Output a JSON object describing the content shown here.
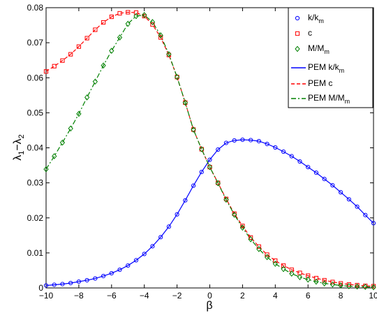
{
  "chart_data": {
    "type": "line",
    "xlabel": "β",
    "ylabel": "λ1−λ2",
    "xlim": [
      -10,
      10
    ],
    "ylim": [
      0,
      0.08
    ],
    "xticks": [
      "-10",
      "-8",
      "-6",
      "-4",
      "-2",
      "0",
      "2",
      "4",
      "6",
      "8",
      "10"
    ],
    "yticks": [
      "0",
      "0.01",
      "0.02",
      "0.03",
      "0.04",
      "0.05",
      "0.06",
      "0.07",
      "0.08"
    ],
    "grid": false,
    "legend_placement": "top-right",
    "series": [
      {
        "name": "k/k_m",
        "kind": "markers",
        "marker": "circle",
        "color": "#0000ff",
        "x": [
          -10,
          -9.5,
          -9,
          -8.5,
          -8,
          -7.5,
          -7,
          -6.5,
          -6,
          -5.5,
          -5,
          -4.5,
          -4,
          -3.5,
          -3,
          -2.5,
          -2,
          -1.5,
          -1,
          -0.5,
          0,
          0.5,
          1,
          1.5,
          2,
          2.5,
          3,
          3.5,
          4,
          4.5,
          5,
          5.5,
          6,
          6.5,
          7,
          7.5,
          8,
          8.5,
          9,
          9.5,
          10
        ],
        "y": [
          0.0007,
          0.0009,
          0.0011,
          0.0014,
          0.0018,
          0.0022,
          0.0027,
          0.0034,
          0.0042,
          0.0052,
          0.0064,
          0.0079,
          0.0097,
          0.0119,
          0.0145,
          0.0175,
          0.021,
          0.025,
          0.0292,
          0.0331,
          0.0366,
          0.0395,
          0.0414,
          0.0421,
          0.0423,
          0.0422,
          0.0419,
          0.0411,
          0.0401,
          0.0389,
          0.0376,
          0.0361,
          0.0345,
          0.0329,
          0.0311,
          0.0293,
          0.0273,
          0.0253,
          0.0232,
          0.0208,
          0.0185
        ]
      },
      {
        "name": "c",
        "kind": "markers",
        "marker": "square",
        "color": "#ff0000",
        "x": [
          -10,
          -9.5,
          -9,
          -8.5,
          -8,
          -7.5,
          -7,
          -6.5,
          -6,
          -5.5,
          -5,
          -4.5,
          -4,
          -3.5,
          -3,
          -2.5,
          -2,
          -1.5,
          -1,
          -0.5,
          0,
          0.5,
          1,
          1.5,
          2,
          2.5,
          3,
          3.5,
          4,
          4.5,
          5,
          5.5,
          6,
          6.5,
          7,
          7.5,
          8,
          8.5,
          9,
          9.5,
          10
        ],
        "y": [
          0.0618,
          0.0633,
          0.0649,
          0.0667,
          0.0689,
          0.0713,
          0.0737,
          0.0758,
          0.0774,
          0.0784,
          0.0787,
          0.0786,
          0.0776,
          0.0752,
          0.0715,
          0.0665,
          0.0602,
          0.0529,
          0.0452,
          0.0396,
          0.0345,
          0.03,
          0.0254,
          0.0212,
          0.0177,
          0.0144,
          0.0118,
          0.0095,
          0.0078,
          0.0064,
          0.0052,
          0.0043,
          0.0035,
          0.0028,
          0.0022,
          0.0017,
          0.0013,
          0.001,
          0.0008,
          0.0006,
          0.0005
        ]
      },
      {
        "name": "M/M_m",
        "kind": "markers",
        "marker": "diamond",
        "color": "#008000",
        "x": [
          -10,
          -9.5,
          -9,
          -8.5,
          -8,
          -7.5,
          -7,
          -6.5,
          -6,
          -5.5,
          -5,
          -4.5,
          -4,
          -3.5,
          -3,
          -2.5,
          -2,
          -1.5,
          -1,
          -0.5,
          0,
          0.5,
          1,
          1.5,
          2,
          2.5,
          3,
          3.5,
          4,
          4.5,
          5,
          5.5,
          6,
          6.5,
          7,
          7.5,
          8,
          8.5,
          9,
          9.5,
          10
        ],
        "y": [
          0.0339,
          0.0376,
          0.0415,
          0.0455,
          0.0497,
          0.0544,
          0.0589,
          0.0635,
          0.0677,
          0.0715,
          0.0754,
          0.0776,
          0.0779,
          0.0759,
          0.0721,
          0.0667,
          0.0602,
          0.0529,
          0.0452,
          0.0396,
          0.0345,
          0.0299,
          0.0252,
          0.0209,
          0.0172,
          0.0139,
          0.0111,
          0.0088,
          0.0069,
          0.0054,
          0.0041,
          0.0031,
          0.0024,
          0.0018,
          0.0013,
          0.001,
          0.0007,
          0.0005,
          0.0004,
          0.0003,
          0.0002
        ]
      },
      {
        "name": "PEM k/k_m",
        "kind": "line",
        "dash": "solid",
        "color": "#0000ff",
        "x": [
          -10,
          -9.5,
          -9,
          -8.5,
          -8,
          -7.5,
          -7,
          -6.5,
          -6,
          -5.5,
          -5,
          -4.5,
          -4,
          -3.5,
          -3,
          -2.5,
          -2,
          -1.5,
          -1,
          -0.5,
          0,
          0.5,
          1,
          1.5,
          2,
          2.5,
          3,
          3.5,
          4,
          4.5,
          5,
          5.5,
          6,
          6.5,
          7,
          7.5,
          8,
          8.5,
          9,
          9.5,
          10
        ],
        "y": [
          0.0007,
          0.0009,
          0.0011,
          0.0014,
          0.0018,
          0.0022,
          0.0027,
          0.0034,
          0.0042,
          0.0052,
          0.0064,
          0.0079,
          0.0097,
          0.0119,
          0.0145,
          0.0175,
          0.021,
          0.025,
          0.0292,
          0.0331,
          0.0366,
          0.0395,
          0.0414,
          0.0421,
          0.0423,
          0.0422,
          0.0419,
          0.0411,
          0.0401,
          0.0389,
          0.0376,
          0.0361,
          0.0345,
          0.0329,
          0.0311,
          0.0293,
          0.0273,
          0.0253,
          0.0232,
          0.0208,
          0.0185
        ]
      },
      {
        "name": "PEM c",
        "kind": "line",
        "dash": "dashed",
        "color": "#ff0000",
        "x": [
          -10,
          -9.5,
          -9,
          -8.5,
          -8,
          -7.5,
          -7,
          -6.5,
          -6,
          -5.5,
          -5,
          -4.5,
          -4,
          -3.5,
          -3,
          -2.5,
          -2,
          -1.5,
          -1,
          -0.5,
          0,
          0.5,
          1,
          1.5,
          2,
          2.5,
          3,
          3.5,
          4,
          4.5,
          5,
          5.5,
          6,
          6.5,
          7,
          7.5,
          8,
          8.5,
          9,
          9.5,
          10
        ],
        "y": [
          0.0618,
          0.0633,
          0.0649,
          0.0667,
          0.0689,
          0.0713,
          0.0737,
          0.0758,
          0.0774,
          0.0784,
          0.0787,
          0.0786,
          0.0776,
          0.0752,
          0.0715,
          0.0665,
          0.0602,
          0.0529,
          0.0452,
          0.0396,
          0.0345,
          0.03,
          0.0254,
          0.0212,
          0.0177,
          0.0144,
          0.0118,
          0.0095,
          0.0078,
          0.0064,
          0.0052,
          0.0043,
          0.0035,
          0.0028,
          0.0022,
          0.0017,
          0.0013,
          0.001,
          0.0008,
          0.0006,
          0.0005
        ]
      },
      {
        "name": "PEM M/M_m",
        "kind": "line",
        "dash": "dashdot",
        "color": "#008000",
        "x": [
          -10,
          -9.5,
          -9,
          -8.5,
          -8,
          -7.5,
          -7,
          -6.5,
          -6,
          -5.5,
          -5,
          -4.5,
          -4,
          -3.5,
          -3,
          -2.5,
          -2,
          -1.5,
          -1,
          -0.5,
          0,
          0.5,
          1,
          1.5,
          2,
          2.5,
          3,
          3.5,
          4,
          4.5,
          5,
          5.5,
          6,
          6.5,
          7,
          7.5,
          8,
          8.5,
          9,
          9.5,
          10
        ],
        "y": [
          0.0339,
          0.0376,
          0.0415,
          0.0455,
          0.0497,
          0.0544,
          0.0589,
          0.0635,
          0.0677,
          0.0715,
          0.0754,
          0.0776,
          0.0779,
          0.0759,
          0.0721,
          0.0667,
          0.0602,
          0.0529,
          0.0452,
          0.0396,
          0.0345,
          0.0299,
          0.0252,
          0.0209,
          0.0172,
          0.0139,
          0.0111,
          0.0088,
          0.0069,
          0.0054,
          0.0041,
          0.0031,
          0.0024,
          0.0018,
          0.0013,
          0.001,
          0.0007,
          0.0005,
          0.0004,
          0.0003,
          0.0002
        ]
      }
    ],
    "legend": [
      {
        "base": "k/k",
        "sub": "m",
        "symbol": "circle",
        "color": "#0000ff"
      },
      {
        "base": "c",
        "sub": "",
        "symbol": "square",
        "color": "#ff0000"
      },
      {
        "base": "M/M",
        "sub": "m",
        "symbol": "diamond",
        "color": "#008000"
      },
      {
        "base": "PEM k/k",
        "sub": "m",
        "symbol": "solid",
        "color": "#0000ff"
      },
      {
        "base": "PEM c",
        "sub": "",
        "symbol": "dashed",
        "color": "#ff0000"
      },
      {
        "base": "PEM M/M",
        "sub": "m",
        "symbol": "dashdot",
        "color": "#008000"
      }
    ]
  }
}
